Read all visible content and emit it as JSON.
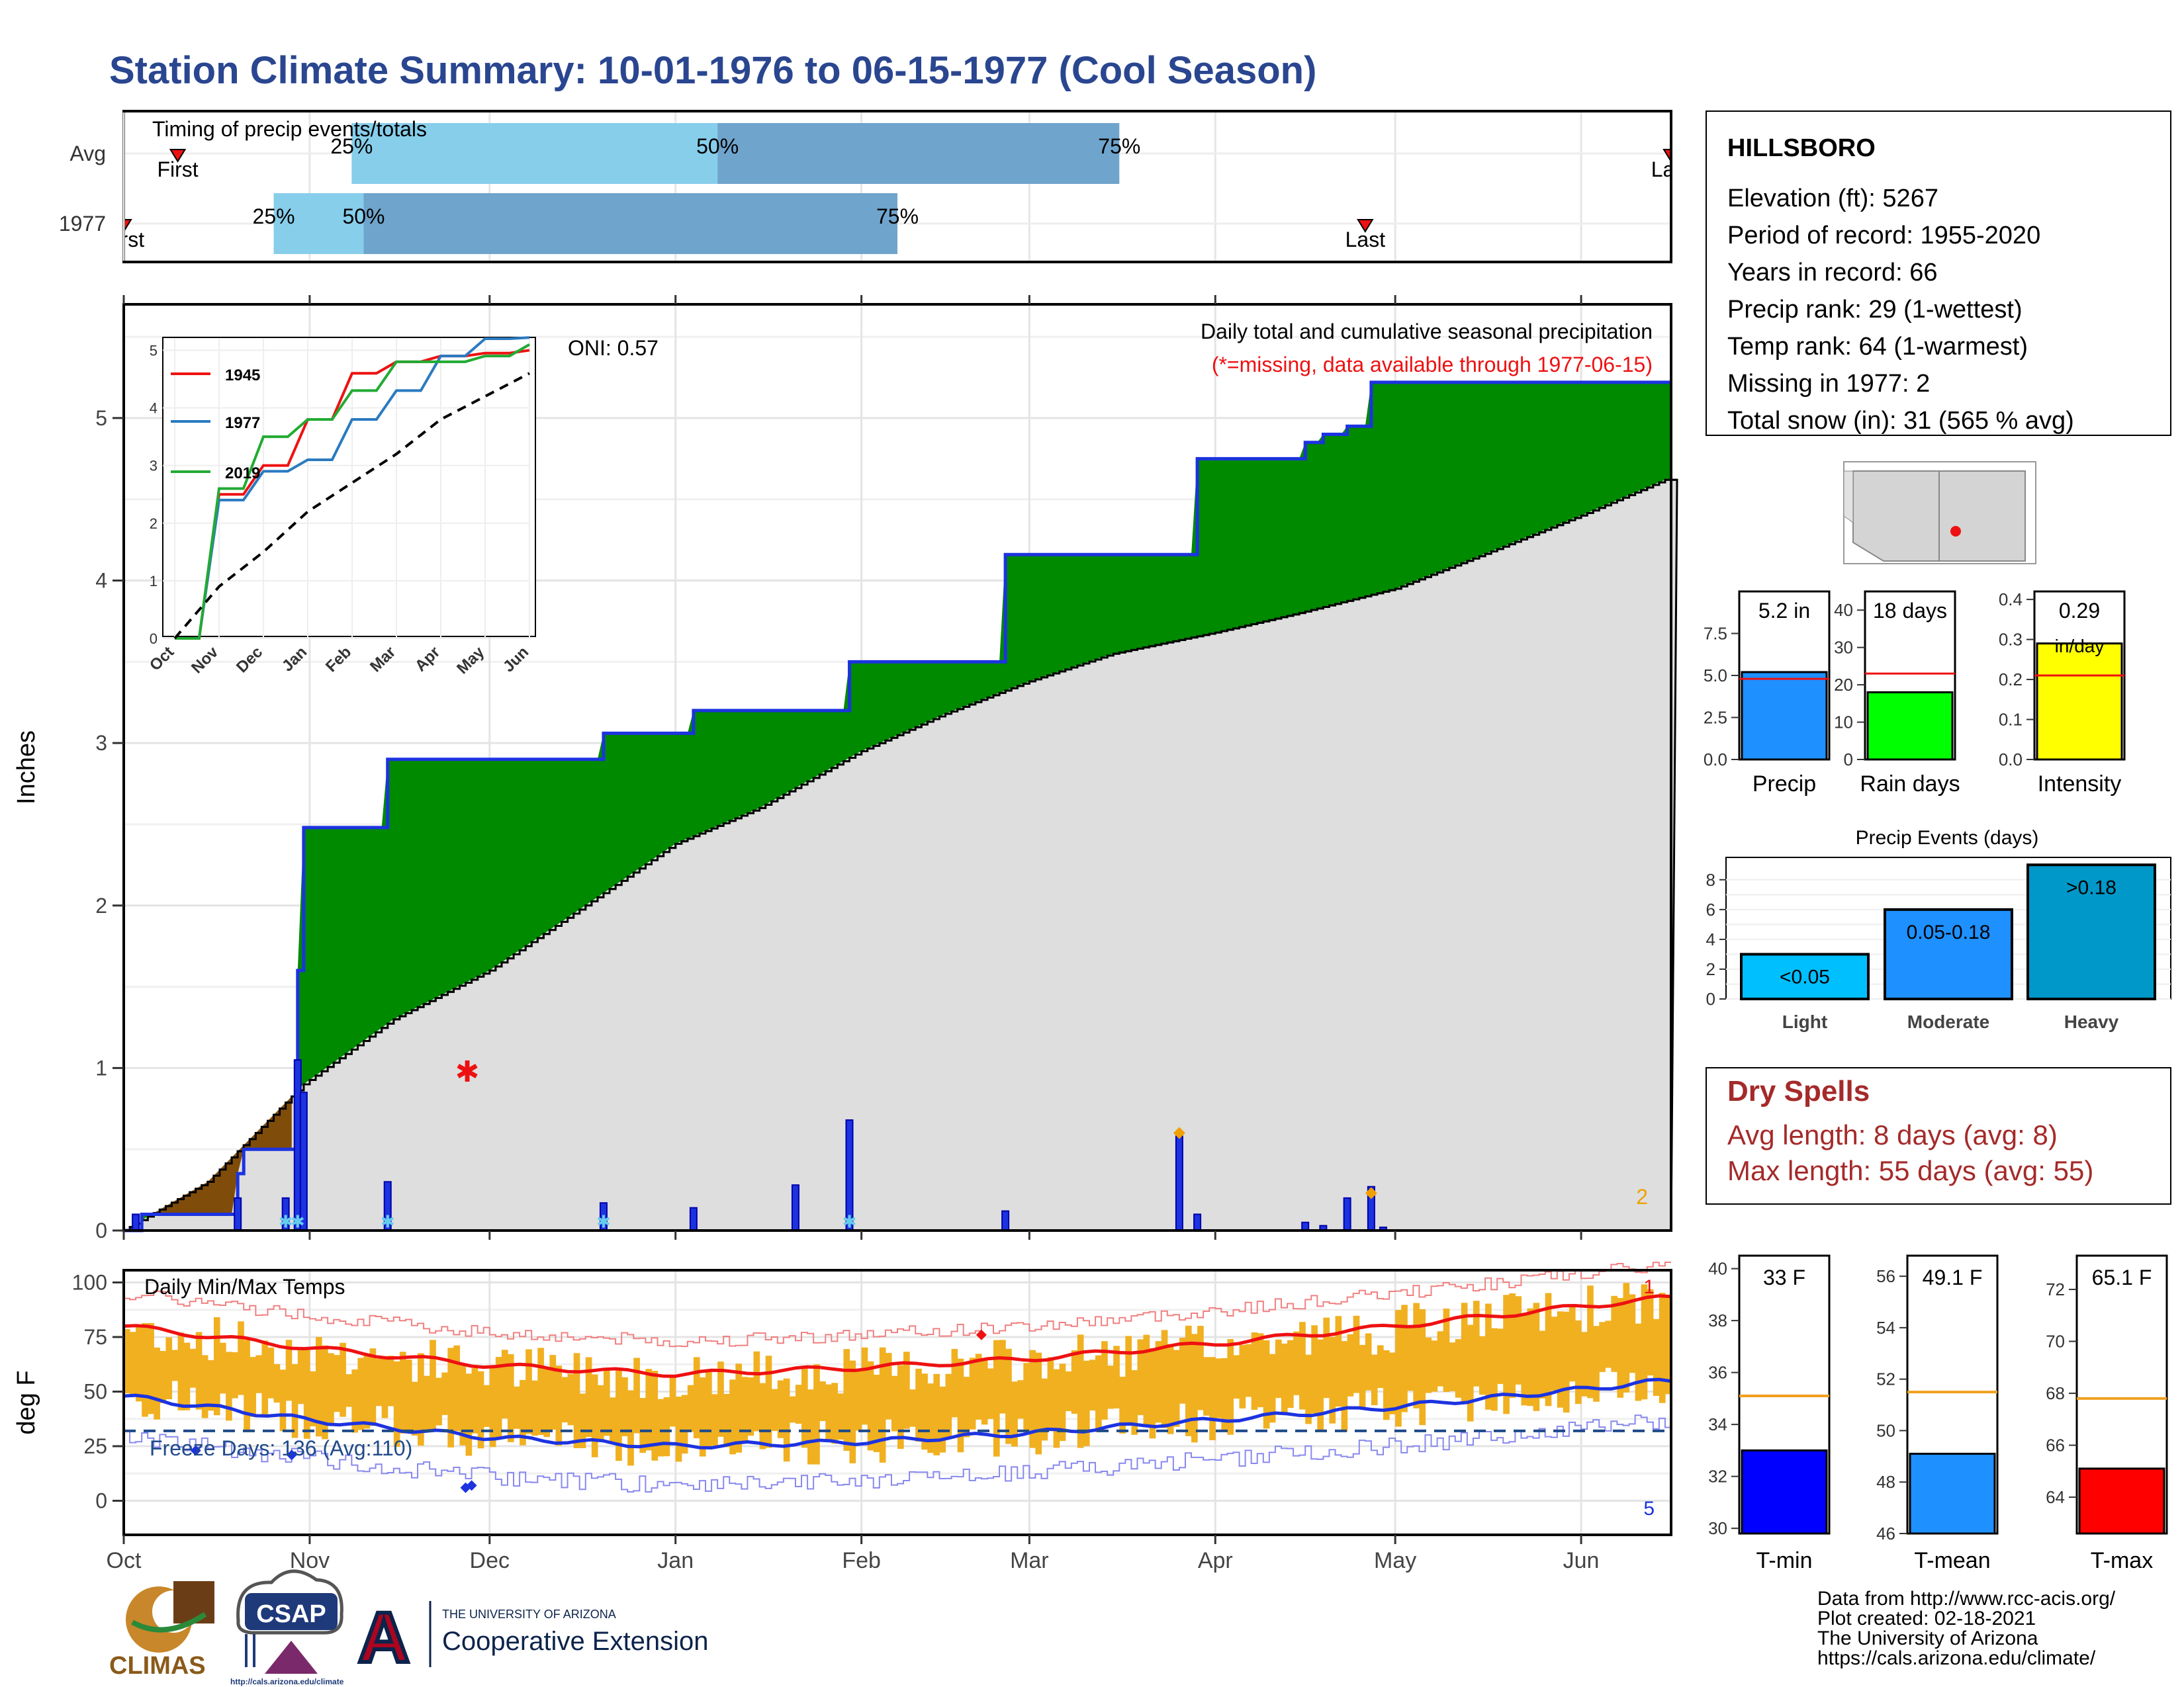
{
  "title": "Station Climate Summary: 10-01-1976 to 06-15-1977 (Cool Season)",
  "colors": {
    "title": "#2a4690",
    "green": "#008a00",
    "brown": "#7f4c0a",
    "gray": "#dedede",
    "blue": "#1c33e0",
    "red": "#ee1111",
    "orange": "#f0b020",
    "lightblue": "#87ceeb",
    "steel": "#6fa4cc"
  },
  "timing": {
    "panel_title": "Timing of precip events/totals",
    "rows": [
      {
        "label": "Avg",
        "first_label": "First",
        "last_label": "Last",
        "first": "Oct 10",
        "p25": "Nov 8",
        "p50": "Jan 8",
        "p75": "Mar 16",
        "last": "Jun 16",
        "p25_label": "25%",
        "p50_label": "50%",
        "p75_label": "75%"
      },
      {
        "label": "1977",
        "first_label": "First",
        "last_label": "Last",
        "first": "Oct 1",
        "p25": "Oct 26",
        "p50": "Nov 10",
        "p75": "Feb 7",
        "last": "Apr 26",
        "p25_label": "25%",
        "p50_label": "50%",
        "p75_label": "75%"
      }
    ]
  },
  "precip_panel": {
    "ylabel": "Inches",
    "oni": "ONI: 0.57",
    "note_title": "Daily total and cumulative seasonal precipitation",
    "note_missing": "(*=missing, data available through 1977-06-15)",
    "missing_count": "2",
    "ylim": [
      0,
      5.7
    ],
    "yticks": [
      "0",
      "1",
      "2",
      "3",
      "4",
      "5"
    ]
  },
  "chart_data": [
    {
      "type": "bar",
      "name": "timing",
      "categories": [
        "Avg",
        "1977"
      ],
      "title": "Timing of precip events/totals",
      "first": [
        "Oct 10",
        "Oct 1"
      ],
      "p25": [
        "Nov 8",
        "Oct 26"
      ],
      "p50": [
        "Jan 8",
        "Nov 10"
      ],
      "p75": [
        "Mar 16",
        "Feb 7"
      ],
      "last": [
        "Jun 16",
        "Apr 26"
      ]
    },
    {
      "type": "area",
      "name": "cumulative_precip",
      "x_unit": "date",
      "ylabel": "Inches",
      "ylim": [
        0,
        5.7
      ],
      "series": [
        {
          "name": "1977 cumulative",
          "x": [
            "Oct 1",
            "Oct 4",
            "Oct 20",
            "Oct 21",
            "Oct 28",
            "Oct 30",
            "Oct 31",
            "Nov 13",
            "Nov 14",
            "Dec 20",
            "Jan 4",
            "Jan 21",
            "Jan 30",
            "Feb 25",
            "Mar 26",
            "Mar 29",
            "Apr 16",
            "Apr 19",
            "Apr 23",
            "Apr 27",
            "Jun 15"
          ],
          "y": [
            0,
            0.1,
            0.35,
            0.5,
            0.5,
            1.6,
            2.48,
            2.48,
            2.9,
            3.06,
            3.2,
            3.2,
            3.5,
            4.16,
            4.16,
            4.75,
            4.85,
            4.9,
            4.95,
            5.22,
            5.22
          ]
        },
        {
          "name": "Average cumulative",
          "x": [
            "Oct 1",
            "Oct 15",
            "Oct 31",
            "Nov 15",
            "Dec 1",
            "Dec 15",
            "Jan 1",
            "Jan 15",
            "Feb 1",
            "Feb 15",
            "Mar 1",
            "Mar 15",
            "Apr 1",
            "Apr 15",
            "May 1",
            "May 15",
            "Jun 1",
            "Jun 15"
          ],
          "y": [
            0,
            0.3,
            0.9,
            1.3,
            1.6,
            1.95,
            2.38,
            2.6,
            2.95,
            3.18,
            3.38,
            3.55,
            3.68,
            3.8,
            3.95,
            4.15,
            4.4,
            4.62
          ]
        }
      ]
    },
    {
      "type": "bar",
      "name": "daily_precip",
      "x_unit": "date",
      "x": [
        "Oct 3",
        "Oct 20",
        "Oct 28",
        "Oct 30",
        "Oct 31",
        "Nov 14",
        "Dec 20",
        "Jan 4",
        "Jan 21",
        "Jan 30",
        "Feb 25",
        "Mar 26",
        "Mar 29",
        "Apr 16",
        "Apr 19",
        "Apr 23",
        "Apr 27",
        "Apr 29"
      ],
      "y": [
        0.1,
        0.2,
        0.2,
        1.05,
        0.85,
        0.3,
        0.17,
        0.14,
        0.28,
        0.68,
        0.12,
        0.58,
        0.1,
        0.05,
        0.03,
        0.2,
        0.27,
        0.02
      ]
    },
    {
      "type": "line",
      "name": "inset_cumulative",
      "title": "",
      "ylim": [
        0,
        5.2
      ],
      "x": [
        "Oct",
        "Nov",
        "Dec",
        "Jan",
        "Feb",
        "Mar",
        "Apr",
        "May",
        "Jun"
      ],
      "series": [
        {
          "name": "1945",
          "y": [
            0,
            2.5,
            3,
            3.8,
            4.6,
            4.8,
            4.9,
            4.95,
            5
          ]
        },
        {
          "name": "1977",
          "y": [
            0,
            2.4,
            2.9,
            3.1,
            3.8,
            4.3,
            4.9,
            5.2,
            5.22
          ]
        },
        {
          "name": "2019",
          "y": [
            0,
            2.6,
            3.5,
            3.8,
            4.3,
            4.8,
            4.8,
            4.9,
            5.1
          ]
        },
        {
          "name": "Average",
          "y": [
            0,
            0.9,
            1.5,
            2.2,
            2.7,
            3.2,
            3.8,
            4.2,
            4.6
          ]
        }
      ]
    },
    {
      "type": "bar",
      "name": "precip_summary",
      "categories": [
        "Precip",
        "Rain days",
        "Intensity"
      ],
      "values": [
        5.2,
        18,
        0.29
      ],
      "averages": [
        4.8,
        23,
        0.21
      ]
    },
    {
      "type": "bar",
      "name": "precip_events",
      "title": "Precip Events (days)",
      "categories": [
        "Light",
        "Moderate",
        "Heavy"
      ],
      "values": [
        3,
        6,
        9
      ],
      "labels": [
        "<0.05",
        "0.05-0.18",
        ">0.18"
      ]
    },
    {
      "type": "line",
      "name": "daily_temps",
      "title": "Daily Min/Max Temps",
      "ylabel": "deg F",
      "ylim": [
        -15,
        105
      ],
      "freeze_line": 32,
      "avg_max": {
        "x": [
          "Oct 1",
          "Nov 1",
          "Dec 1",
          "Jan 1",
          "Feb 1",
          "Mar 1",
          "Apr 1",
          "May 1",
          "Jun 1",
          "Jun 15"
        ],
        "y": [
          80,
          70,
          62,
          58,
          61,
          65,
          72,
          80,
          89,
          93
        ]
      },
      "avg_min": {
        "x": [
          "Oct 1",
          "Nov 1",
          "Dec 1",
          "Jan 1",
          "Feb 1",
          "Mar 1",
          "Apr 1",
          "May 1",
          "Jun 1",
          "Jun 15"
        ],
        "y": [
          48,
          37,
          29,
          25,
          27,
          31,
          37,
          43,
          51,
          55
        ]
      }
    },
    {
      "type": "bar",
      "name": "temp_summary",
      "categories": [
        "T-min",
        "T-mean",
        "T-max"
      ],
      "values": [
        33,
        49.1,
        65.1
      ],
      "averages": [
        35.1,
        51.5,
        67.8
      ]
    }
  ],
  "station": {
    "name": "HILLSBORO",
    "lines": [
      "Elevation (ft): 5267",
      "Period of record: 1955-2020",
      "Years in record: 66",
      "Precip rank: 29 (1-wettest)",
      "Temp rank: 64 (1-warmest)",
      "Missing in 1977: 2",
      "Total snow (in): 31 (565 % avg)"
    ]
  },
  "small_bars": [
    {
      "label": "Precip",
      "value_label": "5.2 in",
      "yticks": [
        "0.0",
        "2.5",
        "5.0",
        "7.5"
      ]
    },
    {
      "label": "Rain days",
      "value_label": "18 days",
      "yticks": [
        "0",
        "10",
        "20",
        "30",
        "40"
      ]
    },
    {
      "label": "Intensity",
      "value_label": "0.29",
      "unit_label": "in/day",
      "yticks": [
        "0.0",
        "0.1",
        "0.2",
        "0.3",
        "0.4"
      ]
    }
  ],
  "events": {
    "title": "Precip Events (days)",
    "yticks": [
      "0",
      "2",
      "4",
      "6",
      "8"
    ]
  },
  "dry_spells": {
    "title": "Dry Spells",
    "avg": "Avg length: 8 days (avg: 8)",
    "max": "Max length: 55 days (avg: 55)"
  },
  "temp_panel": {
    "title": "Daily Min/Max Temps",
    "ylabel": "deg F",
    "yticks": [
      "0",
      "25",
      "50",
      "75",
      "100"
    ],
    "freeze": "Freeze Days: 136 (Avg:110)",
    "missing_max": "1",
    "missing_min": "5"
  },
  "temp_bars": [
    {
      "label": "T-min",
      "value_label": "33 F",
      "yticks": [
        "30",
        "32",
        "34",
        "36",
        "38",
        "40"
      ]
    },
    {
      "label": "T-mean",
      "value_label": "49.1 F",
      "yticks": [
        "46",
        "48",
        "50",
        "52",
        "54",
        "56"
      ]
    },
    {
      "label": "T-max",
      "value_label": "65.1 F",
      "yticks": [
        "64",
        "66",
        "68",
        "70",
        "72"
      ]
    }
  ],
  "months": [
    "Oct",
    "Nov",
    "Dec",
    "Jan",
    "Feb",
    "Mar",
    "Apr",
    "May",
    "Jun"
  ],
  "inset_months": [
    "Oct",
    "Nov",
    "Dec",
    "Jan",
    "Feb",
    "Mar",
    "Apr",
    "May",
    "Jun"
  ],
  "inset_yticks": [
    "0",
    "1",
    "2",
    "3",
    "4",
    "5"
  ],
  "footer": {
    "lines": [
      "Data from http://www.rcc-acis.org/",
      "Plot created: 02-18-2021",
      "The University of Arizona",
      "https://cals.arizona.edu/climate/"
    ],
    "climas": "CLIMAS",
    "csap": "CSAP",
    "csap_url": "http://cals.arizona.edu/climate",
    "ua_small": "THE UNIVERSITY OF ARIZONA",
    "ua_big": "Cooperative Extension",
    "ua_letter": "A"
  }
}
